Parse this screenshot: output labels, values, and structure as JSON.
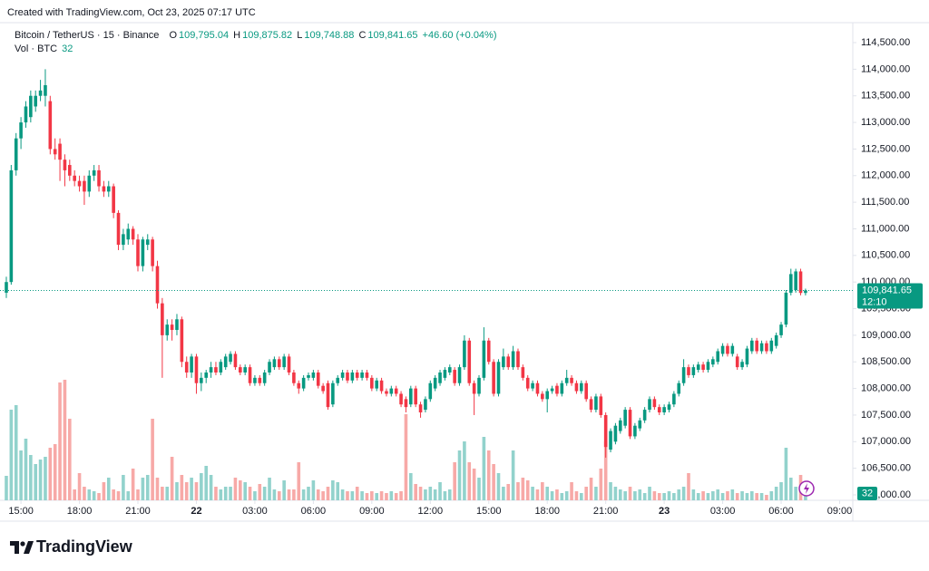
{
  "chart_data": {
    "type": "candlestick",
    "watermark": "Created with TradingView.com, Oct 23, 2025 07:17 UTC",
    "title": "Bitcoin / TetherUS · 15 · Binance",
    "legend": {
      "open_label": "O",
      "open": "109,795.04",
      "high_label": "H",
      "high": "109,875.82",
      "low_label": "L",
      "low": "109,748.88",
      "close_label": "C",
      "close": "109,841.65",
      "change": "+46.60 (+0.04%)",
      "volume_label": "Vol · BTC"
    },
    "up_color": "#089981",
    "down_color": "#f23645",
    "up_volume_color": "#92d2cc",
    "down_volume_color": "#f7a9a7",
    "grid": false,
    "ylim": [
      105898,
      114875
    ],
    "yticks": [
      {
        "value": 106000,
        "label": "106,000.00"
      },
      {
        "value": 106500,
        "label": "106,500.00"
      },
      {
        "value": 107000,
        "label": "107,000.00"
      },
      {
        "value": 107500,
        "label": "107,500.00"
      },
      {
        "value": 108000,
        "label": "108,000.00"
      },
      {
        "value": 108500,
        "label": "108,500.00"
      },
      {
        "value": 109000,
        "label": "109,000.00"
      },
      {
        "value": 109500,
        "label": "109,500.00"
      },
      {
        "value": 110000,
        "label": "110,000.00"
      },
      {
        "value": 110500,
        "label": "110,500.00"
      },
      {
        "value": 111000,
        "label": "111,000.00"
      },
      {
        "value": 111500,
        "label": "111,500.00"
      },
      {
        "value": 112000,
        "label": "112,000.00"
      },
      {
        "value": 112500,
        "label": "112,500.00"
      },
      {
        "value": 113000,
        "label": "113,000.00"
      },
      {
        "value": 113500,
        "label": "113,500.00"
      },
      {
        "value": 114000,
        "label": "114,000.00"
      },
      {
        "value": 114500,
        "label": "114,500.00"
      }
    ],
    "xlim": [
      -1.3,
      173.7
    ],
    "xticks": [
      {
        "value": 3,
        "label": "15:00"
      },
      {
        "value": 15,
        "label": "18:00"
      },
      {
        "value": 27,
        "label": "21:00"
      },
      {
        "value": 39,
        "label": "22"
      },
      {
        "value": 51,
        "label": "03:00"
      },
      {
        "value": 63,
        "label": "06:00"
      },
      {
        "value": 75,
        "label": "09:00"
      },
      {
        "value": 87,
        "label": "12:00"
      },
      {
        "value": 99,
        "label": "15:00"
      },
      {
        "value": 111,
        "label": "18:00"
      },
      {
        "value": 123,
        "label": "21:00"
      },
      {
        "value": 135,
        "label": "23"
      },
      {
        "value": 147,
        "label": "03:00"
      },
      {
        "value": 159,
        "label": "06:00"
      },
      {
        "value": 171,
        "label": "09:00"
      }
    ],
    "vlim": [
      0,
      560
    ],
    "last_price_label": "109,841.65",
    "countdown": "12:10",
    "ohlc": [
      [
        109800,
        110100,
        109700,
        110000
      ],
      [
        110000,
        112200,
        109950,
        112100
      ],
      [
        112100,
        112800,
        112000,
        112700
      ],
      [
        112700,
        113100,
        112500,
        113000
      ],
      [
        113000,
        113400,
        112900,
        113300
      ],
      [
        113100,
        113600,
        113000,
        113500
      ],
      [
        113300,
        113600,
        113200,
        113500
      ],
      [
        113500,
        113800,
        113400,
        113600
      ],
      [
        113500,
        114000,
        113300,
        113700
      ],
      [
        113400,
        113500,
        112400,
        112500
      ],
      [
        112500,
        112700,
        112300,
        112400
      ],
      [
        112600,
        112700,
        111900,
        112300
      ],
      [
        112300,
        112400,
        111800,
        112100
      ],
      [
        112200,
        112300,
        111900,
        112000
      ],
      [
        112000,
        112100,
        111800,
        111900
      ],
      [
        111900,
        112000,
        111700,
        111800
      ],
      [
        111900,
        112000,
        111450,
        111700
      ],
      [
        111700,
        112100,
        111600,
        112000
      ],
      [
        112000,
        112200,
        111900,
        112100
      ],
      [
        112100,
        112200,
        111700,
        111800
      ],
      [
        111800,
        111900,
        111600,
        111700
      ],
      [
        111700,
        111900,
        111600,
        111800
      ],
      [
        111800,
        111850,
        111200,
        111300
      ],
      [
        111300,
        111350,
        110600,
        110700
      ],
      [
        110700,
        111000,
        110600,
        110900
      ],
      [
        110800,
        111100,
        110700,
        111000
      ],
      [
        111000,
        111050,
        110700,
        110800
      ],
      [
        110800,
        110900,
        110200,
        110300
      ],
      [
        110300,
        110850,
        110200,
        110800
      ],
      [
        110700,
        110900,
        110600,
        110800
      ],
      [
        110800,
        110850,
        110200,
        110300
      ],
      [
        110300,
        110400,
        109500,
        109600
      ],
      [
        109600,
        109700,
        108200,
        109000
      ],
      [
        109000,
        109300,
        108900,
        109200
      ],
      [
        109200,
        109300,
        108900,
        109100
      ],
      [
        109100,
        109400,
        109000,
        109300
      ],
      [
        109300,
        109350,
        108400,
        108500
      ],
      [
        108500,
        108600,
        108200,
        108300
      ],
      [
        108300,
        108650,
        108200,
        108600
      ],
      [
        108600,
        108650,
        107900,
        108100
      ],
      [
        108100,
        108300,
        107950,
        108200
      ],
      [
        108200,
        108350,
        108100,
        108300
      ],
      [
        108300,
        108500,
        108200,
        108400
      ],
      [
        108400,
        108500,
        108250,
        108300
      ],
      [
        108300,
        108550,
        108250,
        108500
      ],
      [
        108400,
        108650,
        108350,
        108600
      ],
      [
        108500,
        108700,
        108450,
        108650
      ],
      [
        108650,
        108700,
        108350,
        108400
      ],
      [
        108400,
        108450,
        108250,
        108300
      ],
      [
        108300,
        108450,
        108250,
        108400
      ],
      [
        108400,
        108450,
        108050,
        108100
      ],
      [
        108100,
        108250,
        108050,
        108200
      ],
      [
        108200,
        108250,
        108050,
        108100
      ],
      [
        108100,
        108350,
        108050,
        108300
      ],
      [
        108300,
        108550,
        108250,
        108500
      ],
      [
        108400,
        108600,
        108350,
        108550
      ],
      [
        108550,
        108600,
        108350,
        108400
      ],
      [
        108400,
        108650,
        108350,
        108600
      ],
      [
        108600,
        108650,
        108250,
        108300
      ],
      [
        108300,
        108350,
        108050,
        108100
      ],
      [
        108100,
        108150,
        107900,
        108000
      ],
      [
        108000,
        108250,
        107950,
        108200
      ],
      [
        108200,
        108300,
        108150,
        108250
      ],
      [
        108200,
        108350,
        108150,
        108300
      ],
      [
        108300,
        108350,
        108000,
        108050
      ],
      [
        108050,
        108100,
        107900,
        107950
      ],
      [
        108100,
        108150,
        107600,
        107650
      ],
      [
        107700,
        108150,
        107650,
        108100
      ],
      [
        108100,
        108250,
        108050,
        108200
      ],
      [
        108200,
        108350,
        108150,
        108300
      ],
      [
        108300,
        108350,
        108100,
        108150
      ],
      [
        108150,
        108350,
        108100,
        108300
      ],
      [
        108300,
        108350,
        108150,
        108200
      ],
      [
        108200,
        108350,
        108150,
        108300
      ],
      [
        108300,
        108350,
        108150,
        108200
      ],
      [
        108200,
        108250,
        107950,
        108000
      ],
      [
        108000,
        108200,
        107950,
        108150
      ],
      [
        108150,
        108200,
        107900,
        107950
      ],
      [
        107950,
        108000,
        107850,
        107900
      ],
      [
        107900,
        108050,
        107850,
        108000
      ],
      [
        108000,
        108050,
        107850,
        107900
      ],
      [
        107900,
        107950,
        107650,
        107700
      ],
      [
        107800,
        107850,
        107550,
        107650
      ],
      [
        107700,
        108050,
        107650,
        108000
      ],
      [
        108000,
        108050,
        107650,
        107700
      ],
      [
        107700,
        107750,
        107450,
        107550
      ],
      [
        107600,
        107850,
        107550,
        107800
      ],
      [
        107800,
        108150,
        107750,
        108100
      ],
      [
        108000,
        108250,
        107950,
        108200
      ],
      [
        108100,
        108350,
        108050,
        108300
      ],
      [
        108200,
        108400,
        108150,
        108350
      ],
      [
        108300,
        108450,
        108250,
        108400
      ],
      [
        108350,
        108400,
        108050,
        108100
      ],
      [
        108100,
        108450,
        108050,
        108400
      ],
      [
        108400,
        109000,
        108350,
        108900
      ],
      [
        108900,
        108950,
        108050,
        108100
      ],
      [
        108100,
        108150,
        107500,
        107900
      ],
      [
        107900,
        108250,
        107850,
        108200
      ],
      [
        108200,
        109150,
        108150,
        108900
      ],
      [
        108900,
        108950,
        108450,
        108500
      ],
      [
        108500,
        108550,
        107850,
        107900
      ],
      [
        107900,
        108550,
        107850,
        108500
      ],
      [
        108400,
        108750,
        108350,
        108600
      ],
      [
        108600,
        108650,
        108350,
        108400
      ],
      [
        108400,
        108800,
        108350,
        108700
      ],
      [
        108700,
        108750,
        108350,
        108400
      ],
      [
        108400,
        108450,
        108150,
        108200
      ],
      [
        108200,
        108250,
        107950,
        108000
      ],
      [
        108000,
        108150,
        107950,
        108100
      ],
      [
        108100,
        108150,
        107850,
        107900
      ],
      [
        107900,
        107950,
        107750,
        107800
      ],
      [
        107800,
        108000,
        107550,
        107950
      ],
      [
        107950,
        108050,
        107900,
        108000
      ],
      [
        108050,
        108100,
        107850,
        107900
      ],
      [
        107900,
        108150,
        107850,
        108100
      ],
      [
        108100,
        108350,
        108050,
        108200
      ],
      [
        108200,
        108250,
        108050,
        108100
      ],
      [
        108100,
        108150,
        107900,
        107950
      ],
      [
        107950,
        108150,
        107900,
        108100
      ],
      [
        108100,
        108150,
        107750,
        107800
      ],
      [
        107800,
        107850,
        107550,
        107600
      ],
      [
        107600,
        107900,
        107550,
        107850
      ],
      [
        107850,
        107900,
        107450,
        107500
      ],
      [
        107500,
        107550,
        106700,
        106900
      ],
      [
        106850,
        107250,
        106800,
        107200
      ],
      [
        107000,
        107350,
        106950,
        107300
      ],
      [
        107200,
        107450,
        107150,
        107400
      ],
      [
        107300,
        107650,
        107250,
        107600
      ],
      [
        107600,
        107650,
        107050,
        107100
      ],
      [
        107100,
        107350,
        107050,
        107300
      ],
      [
        107250,
        107450,
        107200,
        107400
      ],
      [
        107400,
        107650,
        107350,
        107600
      ],
      [
        107600,
        107850,
        107550,
        107800
      ],
      [
        107800,
        107850,
        107600,
        107650
      ],
      [
        107650,
        107700,
        107500,
        107550
      ],
      [
        107550,
        107700,
        107500,
        107650
      ],
      [
        107600,
        107750,
        107550,
        107700
      ],
      [
        107700,
        107950,
        107650,
        107900
      ],
      [
        107900,
        108150,
        107850,
        108100
      ],
      [
        108100,
        108550,
        108050,
        108400
      ],
      [
        108400,
        108450,
        108200,
        108250
      ],
      [
        108250,
        108450,
        108200,
        108400
      ],
      [
        108350,
        108500,
        108300,
        108450
      ],
      [
        108450,
        108500,
        108300,
        108350
      ],
      [
        108350,
        108550,
        108300,
        108500
      ],
      [
        108450,
        108600,
        108400,
        108550
      ],
      [
        108500,
        108750,
        108450,
        108700
      ],
      [
        108650,
        108850,
        108600,
        108800
      ],
      [
        108800,
        108850,
        108600,
        108650
      ],
      [
        108650,
        108850,
        108600,
        108800
      ],
      [
        108600,
        108650,
        108350,
        108400
      ],
      [
        108400,
        108550,
        108350,
        108500
      ],
      [
        108450,
        108800,
        108400,
        108750
      ],
      [
        108700,
        108950,
        108650,
        108900
      ],
      [
        108900,
        108950,
        108650,
        108700
      ],
      [
        108700,
        108900,
        108650,
        108850
      ],
      [
        108850,
        108900,
        108650,
        108700
      ],
      [
        108700,
        108950,
        108650,
        108900
      ],
      [
        108800,
        109050,
        108750,
        109000
      ],
      [
        109000,
        109250,
        108950,
        109200
      ],
      [
        109200,
        109850,
        109150,
        109800
      ],
      [
        109800,
        110250,
        109750,
        110150
      ],
      [
        109850,
        110250,
        109800,
        110200
      ],
      [
        110200,
        110250,
        109750,
        109795
      ],
      [
        109795.04,
        109875.82,
        109748.88,
        109841.65
      ]
    ],
    "volume": [
      108,
      400,
      420,
      220,
      272,
      200,
      160,
      180,
      192,
      232,
      248,
      520,
      532,
      360,
      48,
      120,
      60,
      48,
      40,
      32,
      80,
      100,
      48,
      40,
      112,
      40,
      140,
      48,
      100,
      112,
      360,
      100,
      60,
      60,
      192,
      80,
      112,
      80,
      100,
      80,
      120,
      152,
      112,
      60,
      48,
      60,
      60,
      100,
      88,
      80,
      60,
      40,
      72,
      60,
      100,
      48,
      40,
      88,
      48,
      48,
      168,
      48,
      60,
      88,
      48,
      40,
      60,
      88,
      80,
      48,
      40,
      40,
      60,
      40,
      32,
      40,
      32,
      40,
      32,
      40,
      32,
      40,
      380,
      120,
      72,
      60,
      48,
      60,
      48,
      80,
      40,
      48,
      168,
      220,
      260,
      168,
      140,
      100,
      280,
      220,
      160,
      120,
      60,
      72,
      220,
      80,
      100,
      88,
      60,
      48,
      80,
      60,
      40,
      48,
      32,
      40,
      80,
      40,
      32,
      60,
      100,
      60,
      140,
      260,
      80,
      60,
      48,
      40,
      60,
      40,
      48,
      32,
      60,
      40,
      32,
      32,
      40,
      32,
      48,
      60,
      120,
      48,
      32,
      40,
      32,
      40,
      48,
      32,
      40,
      48,
      32,
      40,
      32,
      40,
      32,
      32,
      24,
      40,
      60,
      80,
      232,
      100,
      60,
      112,
      32
    ]
  },
  "footer": {
    "logo": "TradingView"
  }
}
